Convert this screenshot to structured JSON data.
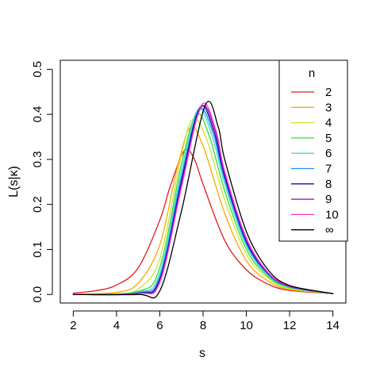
{
  "chart_data": {
    "type": "line",
    "xlabel": "s",
    "ylabel": "L(s|κ)",
    "xlim": [
      2,
      14
    ],
    "ylim": [
      0,
      0.5
    ],
    "xticks": [
      "2",
      "4",
      "6",
      "8",
      "10",
      "12",
      "14"
    ],
    "yticks": [
      "0.0",
      "0.1",
      "0.2",
      "0.3",
      "0.4",
      "0.5"
    ],
    "grid": false,
    "legend": {
      "title": "n",
      "position": "top-right"
    },
    "series": [
      {
        "name": "2",
        "color": "#E41A1C",
        "peak_x": 7.15,
        "peak_y": 0.32,
        "points": [
          [
            2.0,
            0.003
          ],
          [
            3.0,
            0.008
          ],
          [
            4.0,
            0.021
          ],
          [
            5.0,
            0.059
          ],
          [
            6.0,
            0.165
          ],
          [
            6.5,
            0.243
          ],
          [
            7.15,
            0.32
          ],
          [
            7.6,
            0.3
          ],
          [
            8.0,
            0.245
          ],
          [
            9.0,
            0.12
          ],
          [
            10.0,
            0.055
          ],
          [
            11.0,
            0.023
          ],
          [
            12.0,
            0.009
          ],
          [
            14.0,
            0.002
          ]
        ]
      },
      {
        "name": "3",
        "color": "#FFA500",
        "peak_x": 7.4,
        "peak_y": 0.37,
        "points": [
          [
            2.0,
            0.0
          ],
          [
            4.0,
            0.005
          ],
          [
            5.0,
            0.025
          ],
          [
            6.0,
            0.11
          ],
          [
            6.8,
            0.28
          ],
          [
            7.4,
            0.37
          ],
          [
            8.0,
            0.33
          ],
          [
            9.0,
            0.18
          ],
          [
            10.0,
            0.075
          ],
          [
            11.0,
            0.03
          ],
          [
            12.0,
            0.011
          ],
          [
            14.0,
            0.002
          ]
        ]
      },
      {
        "name": "4",
        "color": "#C8E632",
        "peak_x": 7.55,
        "peak_y": 0.39,
        "points": [
          [
            2.0,
            0.0
          ],
          [
            4.0,
            0.002
          ],
          [
            5.0,
            0.012
          ],
          [
            6.0,
            0.08
          ],
          [
            7.0,
            0.31
          ],
          [
            7.55,
            0.39
          ],
          [
            8.2,
            0.34
          ],
          [
            9.0,
            0.21
          ],
          [
            10.0,
            0.09
          ],
          [
            11.0,
            0.036
          ],
          [
            12.0,
            0.013
          ],
          [
            14.0,
            0.002
          ]
        ]
      },
      {
        "name": "5",
        "color": "#33DD33",
        "peak_x": 7.7,
        "peak_y": 0.4,
        "points": [
          [
            2.0,
            0.0
          ],
          [
            5.0,
            0.007
          ],
          [
            6.0,
            0.06
          ],
          [
            7.0,
            0.29
          ],
          [
            7.7,
            0.4
          ],
          [
            8.3,
            0.35
          ],
          [
            9.0,
            0.23
          ],
          [
            10.0,
            0.1
          ],
          [
            11.0,
            0.04
          ],
          [
            12.0,
            0.015
          ],
          [
            14.0,
            0.002
          ]
        ]
      },
      {
        "name": "6",
        "color": "#40E0C0",
        "peak_x": 7.75,
        "peak_y": 0.41,
        "points": [
          [
            2.0,
            0.0
          ],
          [
            5.0,
            0.005
          ],
          [
            6.0,
            0.048
          ],
          [
            7.0,
            0.275
          ],
          [
            7.75,
            0.41
          ],
          [
            8.4,
            0.355
          ],
          [
            9.0,
            0.245
          ],
          [
            10.0,
            0.108
          ],
          [
            11.0,
            0.043
          ],
          [
            12.0,
            0.016
          ],
          [
            14.0,
            0.002
          ]
        ]
      },
      {
        "name": "7",
        "color": "#1E90FF",
        "peak_x": 7.8,
        "peak_y": 0.41,
        "points": [
          [
            2.0,
            0.0
          ],
          [
            5.0,
            0.004
          ],
          [
            6.0,
            0.04
          ],
          [
            7.0,
            0.262
          ],
          [
            7.8,
            0.41
          ],
          [
            8.45,
            0.36
          ],
          [
            9.0,
            0.255
          ],
          [
            10.0,
            0.113
          ],
          [
            11.0,
            0.045
          ],
          [
            12.0,
            0.017
          ],
          [
            14.0,
            0.002
          ]
        ]
      },
      {
        "name": "8",
        "color": "#1010A0",
        "peak_x": 7.85,
        "peak_y": 0.415,
        "points": [
          [
            2.0,
            0.0
          ],
          [
            5.0,
            0.003
          ],
          [
            6.0,
            0.034
          ],
          [
            7.0,
            0.252
          ],
          [
            7.85,
            0.415
          ],
          [
            8.5,
            0.362
          ],
          [
            9.0,
            0.262
          ],
          [
            10.0,
            0.118
          ],
          [
            11.0,
            0.047
          ],
          [
            12.0,
            0.018
          ],
          [
            14.0,
            0.002
          ]
        ]
      },
      {
        "name": "9",
        "color": "#9400D3",
        "peak_x": 7.9,
        "peak_y": 0.415,
        "points": [
          [
            2.0,
            0.0
          ],
          [
            5.0,
            0.002
          ],
          [
            6.0,
            0.03
          ],
          [
            7.0,
            0.244
          ],
          [
            7.9,
            0.415
          ],
          [
            8.55,
            0.364
          ],
          [
            9.0,
            0.268
          ],
          [
            10.0,
            0.122
          ],
          [
            11.0,
            0.048
          ],
          [
            12.0,
            0.018
          ],
          [
            14.0,
            0.002
          ]
        ]
      },
      {
        "name": "10",
        "color": "#FF33CC",
        "peak_x": 7.92,
        "peak_y": 0.42,
        "points": [
          [
            2.0,
            0.0
          ],
          [
            5.0,
            0.002
          ],
          [
            6.0,
            0.027
          ],
          [
            7.0,
            0.238
          ],
          [
            7.92,
            0.42
          ],
          [
            8.58,
            0.366
          ],
          [
            9.0,
            0.273
          ],
          [
            10.0,
            0.125
          ],
          [
            11.0,
            0.049
          ],
          [
            12.0,
            0.019
          ],
          [
            14.0,
            0.002
          ]
        ]
      },
      {
        "name": "∞",
        "color": "#000000",
        "peak_x": 8.1,
        "peak_y": 0.42,
        "points": [
          [
            2.0,
            0.0
          ],
          [
            5.0,
            0.0
          ],
          [
            6.0,
            0.008
          ],
          [
            7.0,
            0.185
          ],
          [
            8.1,
            0.42
          ],
          [
            8.7,
            0.372
          ],
          [
            9.0,
            0.3
          ],
          [
            10.0,
            0.14
          ],
          [
            11.0,
            0.055
          ],
          [
            12.0,
            0.02
          ],
          [
            14.0,
            0.002
          ]
        ]
      }
    ]
  }
}
